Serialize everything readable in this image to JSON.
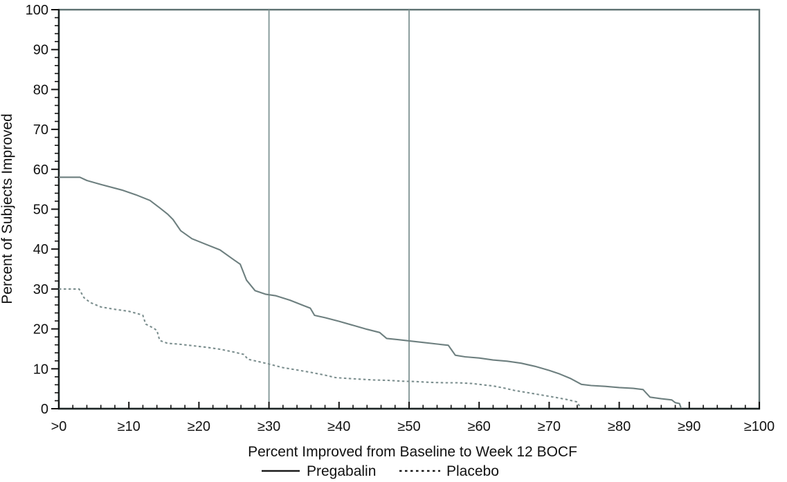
{
  "chart_data": {
    "type": "line",
    "title": "",
    "xlabel": "Percent Improved from Baseline to Week 12 BOCF",
    "ylabel": "Percent of Subjects Improved",
    "xlim": [
      0,
      100
    ],
    "ylim": [
      0,
      100
    ],
    "x_major_ticks": [
      {
        "value": 0,
        "label": ">0"
      },
      {
        "value": 10,
        "label": "≥10"
      },
      {
        "value": 20,
        "label": "≥20"
      },
      {
        "value": 30,
        "label": "≥30"
      },
      {
        "value": 40,
        "label": "≥40"
      },
      {
        "value": 50,
        "label": "≥50"
      },
      {
        "value": 60,
        "label": "≥60"
      },
      {
        "value": 70,
        "label": "≥70"
      },
      {
        "value": 80,
        "label": "≥80"
      },
      {
        "value": 90,
        "label": "≥90"
      },
      {
        "value": 100,
        "label": "≥100"
      }
    ],
    "y_major_ticks": [
      {
        "value": 0,
        "label": "0"
      },
      {
        "value": 10,
        "label": "10"
      },
      {
        "value": 20,
        "label": "20"
      },
      {
        "value": 30,
        "label": "30"
      },
      {
        "value": 40,
        "label": "40"
      },
      {
        "value": 50,
        "label": "50"
      },
      {
        "value": 60,
        "label": "60"
      },
      {
        "value": 70,
        "label": "70"
      },
      {
        "value": 80,
        "label": "80"
      },
      {
        "value": 90,
        "label": "90"
      },
      {
        "value": 100,
        "label": "100"
      }
    ],
    "minor_tick_step": 2,
    "grid": "off",
    "reference_lines_x": [
      30,
      50
    ],
    "legend_position": "bottom-center",
    "series": [
      {
        "name": "Pregabalin",
        "style": "solid",
        "color": "#6d7f7f",
        "points": [
          [
            0,
            58
          ],
          [
            3,
            58
          ],
          [
            4,
            57.2
          ],
          [
            6,
            56.2
          ],
          [
            9,
            54.8
          ],
          [
            11,
            53.6
          ],
          [
            13,
            52.2
          ],
          [
            14.5,
            50.2
          ],
          [
            15.5,
            48.8
          ],
          [
            16.3,
            47.4
          ],
          [
            17.4,
            44.6
          ],
          [
            19,
            42.6
          ],
          [
            21,
            41.2
          ],
          [
            23,
            39.8
          ],
          [
            25,
            37.3
          ],
          [
            25.9,
            36.2
          ],
          [
            26.8,
            32.2
          ],
          [
            28,
            29.6
          ],
          [
            29.5,
            28.7
          ],
          [
            31,
            28.3
          ],
          [
            33,
            27.2
          ],
          [
            35,
            25.8
          ],
          [
            35.9,
            25.2
          ],
          [
            36.5,
            23.4
          ],
          [
            38,
            22.8
          ],
          [
            40,
            21.9
          ],
          [
            42,
            20.9
          ],
          [
            44,
            19.9
          ],
          [
            45.8,
            19.1
          ],
          [
            46.8,
            17.6
          ],
          [
            48.5,
            17.3
          ],
          [
            50,
            17
          ],
          [
            52,
            16.6
          ],
          [
            54,
            16.2
          ],
          [
            55.6,
            15.9
          ],
          [
            56.6,
            13.4
          ],
          [
            58,
            13
          ],
          [
            60,
            12.7
          ],
          [
            62,
            12.2
          ],
          [
            64,
            11.9
          ],
          [
            66,
            11.4
          ],
          [
            68,
            10.6
          ],
          [
            70,
            9.6
          ],
          [
            71.5,
            8.7
          ],
          [
            73,
            7.6
          ],
          [
            74.6,
            6.1
          ],
          [
            76,
            5.8
          ],
          [
            78,
            5.6
          ],
          [
            80,
            5.3
          ],
          [
            82,
            5.1
          ],
          [
            83.4,
            4.8
          ],
          [
            84.4,
            2.9
          ],
          [
            86,
            2.5
          ],
          [
            87.5,
            2.2
          ],
          [
            88,
            1.5
          ],
          [
            88.6,
            1.3
          ],
          [
            88.8,
            0.3
          ]
        ]
      },
      {
        "name": "Placebo",
        "style": "dashed",
        "color": "#7b8e8e",
        "points": [
          [
            0,
            30
          ],
          [
            2.9,
            30
          ],
          [
            3.6,
            27.8
          ],
          [
            4.5,
            26.6
          ],
          [
            6,
            25.5
          ],
          [
            8,
            24.9
          ],
          [
            10,
            24.4
          ],
          [
            11.3,
            23.8
          ],
          [
            12,
            23.4
          ],
          [
            12.4,
            21.2
          ],
          [
            13.5,
            20.2
          ],
          [
            14,
            19.6
          ],
          [
            14.4,
            17.1
          ],
          [
            15.5,
            16.4
          ],
          [
            17,
            16.2
          ],
          [
            19,
            15.8
          ],
          [
            21,
            15.4
          ],
          [
            23,
            14.9
          ],
          [
            25,
            14.2
          ],
          [
            26.4,
            13.6
          ],
          [
            27,
            12.4
          ],
          [
            28.5,
            11.8
          ],
          [
            30,
            11.2
          ],
          [
            32,
            10.3
          ],
          [
            34,
            9.7
          ],
          [
            36,
            9.1
          ],
          [
            38,
            8.4
          ],
          [
            39.5,
            7.8
          ],
          [
            41,
            7.6
          ],
          [
            43,
            7.4
          ],
          [
            45,
            7.2
          ],
          [
            47,
            7.1
          ],
          [
            49,
            6.9
          ],
          [
            51,
            6.8
          ],
          [
            53,
            6.6
          ],
          [
            55,
            6.5
          ],
          [
            57,
            6.5
          ],
          [
            59,
            6.3
          ],
          [
            60.5,
            6
          ],
          [
            62,
            5.7
          ],
          [
            63.5,
            5.2
          ],
          [
            65,
            4.6
          ],
          [
            67,
            4
          ],
          [
            69,
            3.4
          ],
          [
            71,
            2.8
          ],
          [
            72.5,
            2.3
          ],
          [
            74,
            1.7
          ],
          [
            74.4,
            0.4
          ]
        ]
      }
    ],
    "colors": {
      "frame_top_right": "#5d7070",
      "axis_left_bottom": "#1c2424",
      "tick": "#111111",
      "reference_line": "#7f9494",
      "legend_sample": "#1a1a1a",
      "text": "#111111"
    }
  }
}
